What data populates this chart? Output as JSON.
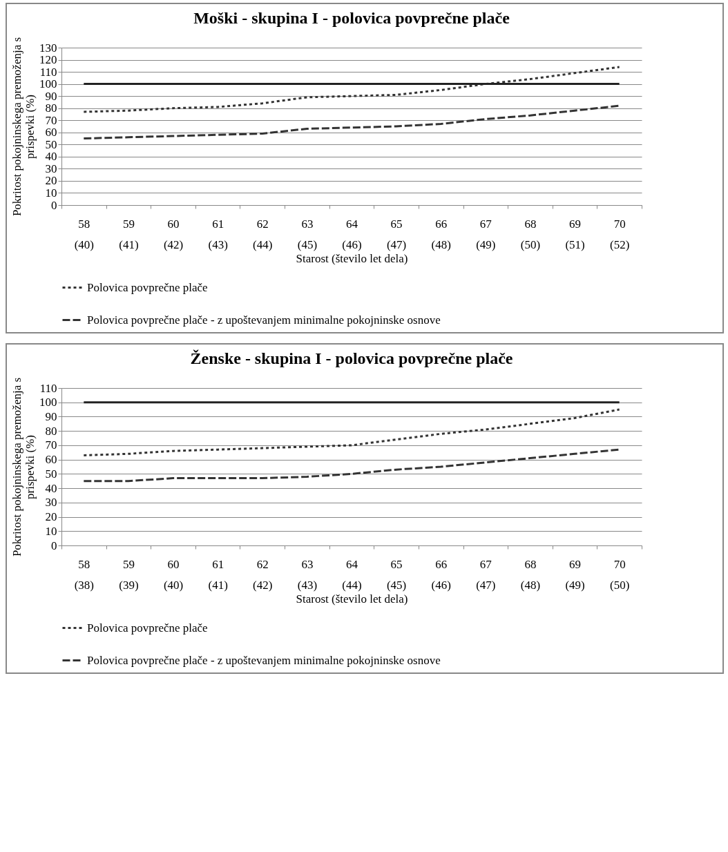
{
  "chart_data": [
    {
      "type": "line",
      "title": "Moški - skupina I - polovica povprečne plače",
      "xlabel": "Starost (število let dela)",
      "ylabel": "Pokritost pokojninskega premoženja s prispevki (%)",
      "categories": [
        "58\n(40)",
        "59\n(41)",
        "60\n(42)",
        "61\n(43)",
        "62\n(44)",
        "63\n(45)",
        "64\n(46)",
        "65\n(47)",
        "66\n(48)",
        "67\n(49)",
        "68\n(50)",
        "69\n(51)",
        "70\n(52)"
      ],
      "series": [
        {
          "name": "Polovica povprečne plače",
          "color": "#333333",
          "line_style": "dotted",
          "values": [
            77,
            78,
            80,
            81,
            84,
            89,
            90,
            91,
            95,
            100,
            104,
            109,
            114
          ]
        },
        {
          "name": "Polovica povprečne plače - z upoštevanjem minimalne pokojninske osnove",
          "color": "#333333",
          "line_style": "dashed",
          "values": [
            55,
            56,
            57,
            58,
            59,
            63,
            64,
            65,
            67,
            71,
            74,
            78,
            82
          ]
        },
        {
          "color": "#222222",
          "line_style": "solid",
          "values": [
            100,
            100,
            100,
            100,
            100,
            100,
            100,
            100,
            100,
            100,
            100,
            100,
            100
          ]
        }
      ],
      "ylim": [
        0,
        130
      ],
      "yticks": [
        0,
        10,
        20,
        30,
        40,
        50,
        60,
        70,
        80,
        90,
        100,
        110,
        120,
        130
      ],
      "grid": "y",
      "legend": "bottom",
      "marker": "none"
    },
    {
      "type": "line",
      "title": "Ženske - skupina I - polovica povprečne plače",
      "xlabel": "Starost (število let dela)",
      "ylabel": "Pokritost pokojninskega premoženja s prispevki (%)",
      "categories": [
        "58\n(38)",
        "59\n(39)",
        "60\n(40)",
        "61\n(41)",
        "62\n(42)",
        "63\n(43)",
        "64\n(44)",
        "65\n(45)",
        "66\n(46)",
        "67\n(47)",
        "68\n(48)",
        "69\n(49)",
        "70\n(50)"
      ],
      "series": [
        {
          "name": "Polovica povprečne plače",
          "color": "#333333",
          "line_style": "dotted",
          "values": [
            63,
            64,
            66,
            67,
            68,
            69,
            70,
            74,
            78,
            81,
            85,
            89,
            95
          ]
        },
        {
          "name": "Polovica povprečne plače - z upoštevanjem minimalne pokojninske osnove",
          "color": "#333333",
          "line_style": "dashed",
          "values": [
            45,
            45,
            47,
            47,
            47,
            48,
            50,
            53,
            55,
            58,
            61,
            64,
            67
          ]
        },
        {
          "color": "#222222",
          "line_style": "solid",
          "values": [
            100,
            100,
            100,
            100,
            100,
            100,
            100,
            100,
            100,
            100,
            100,
            100,
            100
          ]
        }
      ],
      "ylim": [
        0,
        110
      ],
      "yticks": [
        0,
        10,
        20,
        30,
        40,
        50,
        60,
        70,
        80,
        90,
        100,
        110
      ],
      "grid": "y",
      "legend": "bottom",
      "marker": "none"
    }
  ]
}
